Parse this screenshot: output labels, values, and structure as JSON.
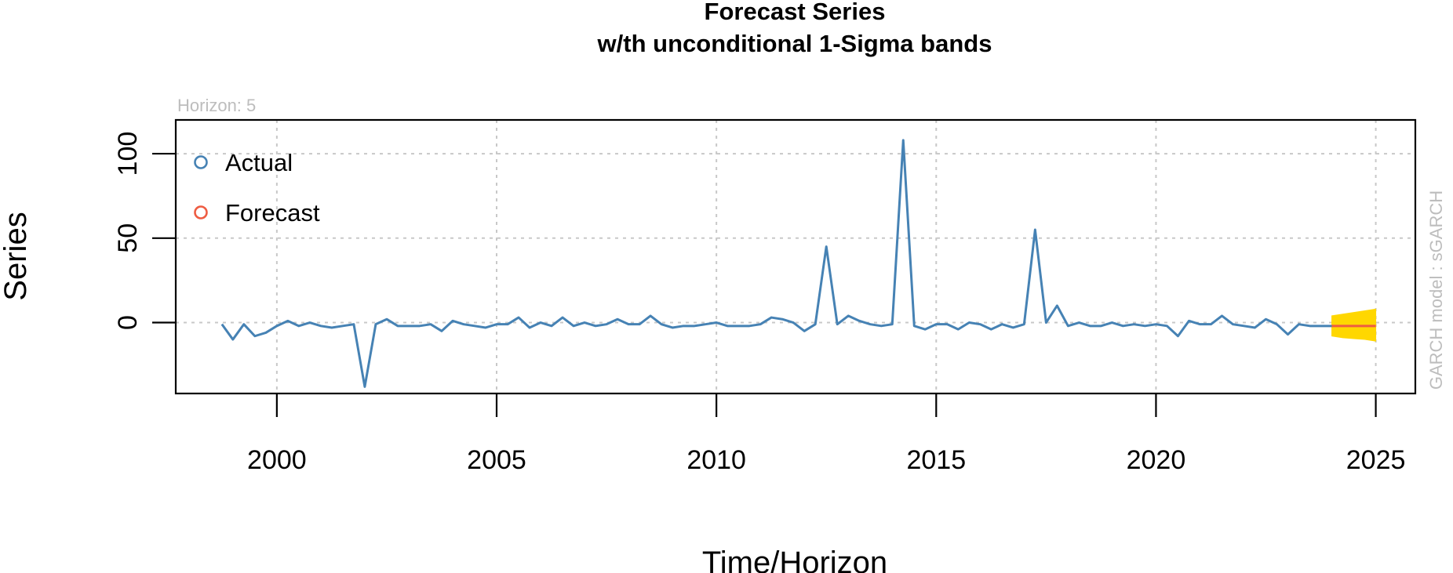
{
  "chart_data": {
    "type": "line",
    "title": "Forecast Series",
    "subtitle": "w/th unconditional 1-Sigma bands",
    "xlabel": "Time/Horizon",
    "ylabel": "Series",
    "horizon_note": "Horizon: 5",
    "model_note": "GARCH model :  sGARCH",
    "xlim": [
      1997.7,
      2025.9
    ],
    "ylim": [
      -42,
      120
    ],
    "x_ticks": [
      2000,
      2005,
      2010,
      2015,
      2020,
      2025
    ],
    "y_ticks": [
      0,
      50,
      100
    ],
    "grid": true,
    "legend_position": "top-left",
    "legend": [
      {
        "label": "Actual",
        "color": "#4682b4"
      },
      {
        "label": "Forecast",
        "color": "#ee5c42"
      }
    ],
    "actual": {
      "name": "Actual",
      "color": "#4682b4",
      "x": [
        1998.75,
        1999.0,
        1999.25,
        1999.5,
        1999.75,
        2000.0,
        2000.25,
        2000.5,
        2000.75,
        2001.0,
        2001.25,
        2001.5,
        2001.75,
        2002.0,
        2002.25,
        2002.5,
        2002.75,
        2003.0,
        2003.25,
        2003.5,
        2003.75,
        2004.0,
        2004.25,
        2004.5,
        2004.75,
        2005.0,
        2005.25,
        2005.5,
        2005.75,
        2006.0,
        2006.25,
        2006.5,
        2006.75,
        2007.0,
        2007.25,
        2007.5,
        2007.75,
        2008.0,
        2008.25,
        2008.5,
        2008.75,
        2009.0,
        2009.25,
        2009.5,
        2009.75,
        2010.0,
        2010.25,
        2010.5,
        2010.75,
        2011.0,
        2011.25,
        2011.5,
        2011.75,
        2012.0,
        2012.25,
        2012.5,
        2012.75,
        2013.0,
        2013.25,
        2013.5,
        2013.75,
        2014.0,
        2014.25,
        2014.5,
        2014.75,
        2015.0,
        2015.25,
        2015.5,
        2015.75,
        2016.0,
        2016.25,
        2016.5,
        2016.75,
        2017.0,
        2017.25,
        2017.5,
        2017.75,
        2018.0,
        2018.25,
        2018.5,
        2018.75,
        2019.0,
        2019.25,
        2019.5,
        2019.75,
        2020.0,
        2020.25,
        2020.5,
        2020.75,
        2021.0,
        2021.25,
        2021.5,
        2021.75,
        2022.0,
        2022.25,
        2022.5,
        2022.75,
        2023.0,
        2023.25,
        2023.5,
        2023.75,
        2024.0
      ],
      "y": [
        -1,
        -10,
        -1,
        -8,
        -6,
        -2,
        1,
        -2,
        0,
        -2,
        -3,
        -2,
        -1,
        -38,
        -1,
        2,
        -2,
        -2,
        -2,
        -1,
        -5,
        1,
        -1,
        -2,
        -3,
        -1,
        -1,
        3,
        -3,
        0,
        -2,
        3,
        -2,
        0,
        -2,
        -1,
        2,
        -1,
        -1,
        4,
        -1,
        -3,
        -2,
        -2,
        -1,
        0,
        -2,
        -2,
        -2,
        -1,
        3,
        2,
        0,
        -5,
        -1,
        45,
        -1,
        4,
        1,
        -1,
        -2,
        -1,
        108,
        -2,
        -4,
        -1,
        -1,
        -4,
        0,
        -1,
        -4,
        -1,
        -3,
        -1,
        55,
        0,
        10,
        -2,
        0,
        -2,
        -2,
        0,
        -2,
        -1,
        -2,
        -1,
        -2,
        -8,
        1,
        -1,
        -1,
        4,
        -1,
        -2,
        -3,
        2,
        -1,
        -7,
        -1,
        -2,
        -2,
        -2
      ]
    },
    "forecast": {
      "name": "Forecast",
      "color": "#ee5c42",
      "x": [
        2024.0,
        2024.25,
        2024.5,
        2024.75,
        2025.0
      ],
      "y": [
        -2,
        -2,
        -2,
        -2,
        -2
      ]
    },
    "sigma_band": {
      "color": "#ffd700",
      "x": [
        2024.0,
        2024.25,
        2024.5,
        2024.75,
        2025.0
      ],
      "lower": [
        -8,
        -9,
        -9.5,
        -10,
        -11
      ],
      "upper": [
        4,
        5,
        6,
        7,
        8
      ]
    }
  }
}
